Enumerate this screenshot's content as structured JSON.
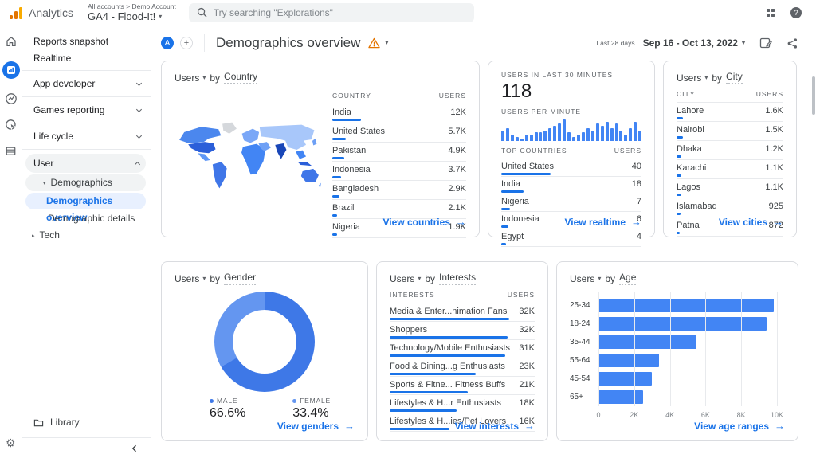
{
  "topbar": {
    "product": "Analytics",
    "breadcrumb": "All accounts > Demo Account",
    "property": "GA4 - Flood-It!",
    "search_placeholder": "Try searching \"Explorations\""
  },
  "header": {
    "avatar": "A",
    "title": "Demographics overview",
    "date_label": "Last 28 days",
    "date_range": "Sep 16 - Oct 13, 2022"
  },
  "sidebar": {
    "reports_snapshot": "Reports snapshot",
    "realtime": "Realtime",
    "app_developer": "App developer",
    "games_reporting": "Games reporting",
    "life_cycle": "Life cycle",
    "user": "User",
    "demographics": "Demographics",
    "demographics_overview": "Demographics overview",
    "demographic_details": "Demographic details",
    "tech": "Tech",
    "library": "Library"
  },
  "colors": {
    "accent": "#1a73e8",
    "bar_blue": "#4285f4",
    "warning": "#e37400"
  },
  "chart_data": [
    {
      "id": "country",
      "type": "table",
      "metric": "Users",
      "by": "by",
      "dim": "Country",
      "columns": [
        "COUNTRY",
        "USERS"
      ],
      "rows": [
        [
          "India",
          "12K",
          12000
        ],
        [
          "United States",
          "5.7K",
          5700
        ],
        [
          "Pakistan",
          "4.9K",
          4900
        ],
        [
          "Indonesia",
          "3.7K",
          3700
        ],
        [
          "Bangladesh",
          "2.9K",
          2900
        ],
        [
          "Brazil",
          "2.1K",
          2100
        ],
        [
          "Nigeria",
          "1.9K",
          1900
        ]
      ],
      "link": "View countries"
    },
    {
      "id": "realtime",
      "type": "bar",
      "label_top": "USERS IN LAST 30 MINUTES",
      "value_top": "118",
      "label_chart": "USERS PER MINUTE",
      "per_minute": [
        5,
        6,
        3,
        2,
        1,
        3,
        3,
        4,
        4,
        5,
        6,
        7,
        8,
        10,
        4,
        2,
        3,
        4,
        6,
        5,
        8,
        7,
        9,
        6,
        8,
        5,
        3,
        6,
        9,
        5
      ],
      "columns": [
        "TOP COUNTRIES",
        "USERS"
      ],
      "rows": [
        [
          "United States",
          "40",
          40
        ],
        [
          "India",
          "18",
          18
        ],
        [
          "Nigeria",
          "7",
          7
        ],
        [
          "Indonesia",
          "6",
          6
        ],
        [
          "Egypt",
          "4",
          4
        ]
      ],
      "link": "View realtime"
    },
    {
      "id": "city",
      "type": "table",
      "metric": "Users",
      "by": "by",
      "dim": "City",
      "columns": [
        "CITY",
        "USERS"
      ],
      "rows": [
        [
          "Lahore",
          "1.6K",
          1600
        ],
        [
          "Nairobi",
          "1.5K",
          1500
        ],
        [
          "Dhaka",
          "1.2K",
          1200
        ],
        [
          "Karachi",
          "1.1K",
          1100
        ],
        [
          "Lagos",
          "1.1K",
          1100
        ],
        [
          "Islamabad",
          "925",
          925
        ],
        [
          "Patna",
          "872",
          872
        ]
      ],
      "link": "View cities"
    },
    {
      "id": "gender",
      "type": "donut",
      "metric": "Users",
      "by": "by",
      "dim": "Gender",
      "slices": [
        {
          "label": "MALE",
          "pct": 66.6,
          "display": "66.6%",
          "color": "#3e78e7"
        },
        {
          "label": "FEMALE",
          "pct": 33.4,
          "display": "33.4%",
          "color": "#6496f0"
        }
      ],
      "link": "View genders"
    },
    {
      "id": "interests",
      "type": "table",
      "metric": "Users",
      "by": "by",
      "dim": "Interests",
      "columns": [
        "INTERESTS",
        "USERS"
      ],
      "rows": [
        [
          "Media & Enter...nimation Fans",
          "32K",
          32000
        ],
        [
          "Shoppers",
          "32K",
          31500
        ],
        [
          "Technology/Mobile Enthusiasts",
          "31K",
          31000
        ],
        [
          "Food & Dining...g Enthusiasts",
          "23K",
          23000
        ],
        [
          "Sports & Fitne... Fitness Buffs",
          "21K",
          21000
        ],
        [
          "Lifestyles & H...r Enthusiasts",
          "18K",
          18000
        ],
        [
          "Lifestyles & H...ies/Pet Lovers",
          "16K",
          16000
        ]
      ],
      "link": "View interests"
    },
    {
      "id": "age",
      "type": "bar_h",
      "metric": "Users",
      "by": "by",
      "dim": "Age",
      "categories": [
        "25-34",
        "18-24",
        "35-44",
        "55-64",
        "45-54",
        "65+"
      ],
      "values": [
        9800,
        9400,
        5500,
        3400,
        3000,
        2500
      ],
      "x_ticks": [
        "0",
        "2K",
        "4K",
        "6K",
        "8K",
        "10K"
      ],
      "xlim": [
        0,
        10000
      ],
      "link": "View age ranges"
    }
  ]
}
